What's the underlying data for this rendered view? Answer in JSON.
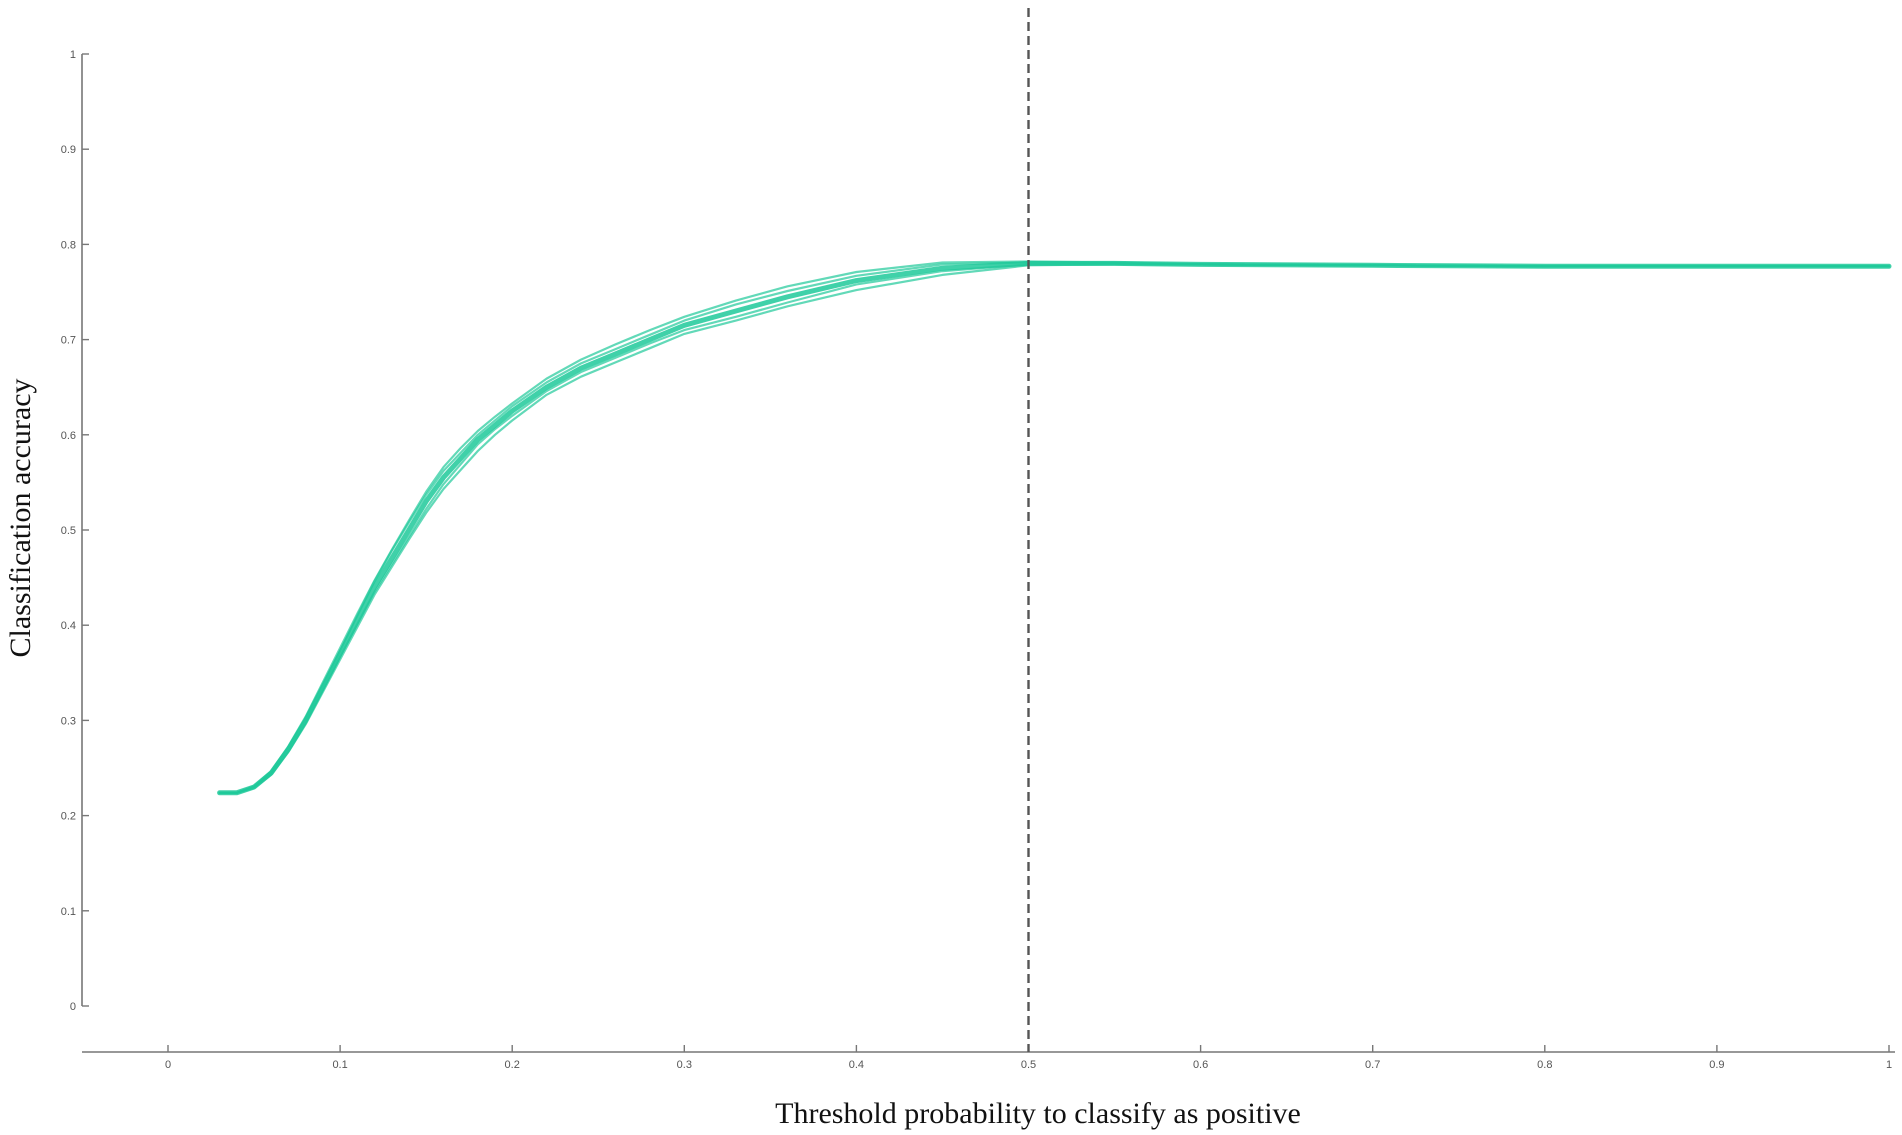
{
  "chart_data": {
    "type": "line",
    "title": "",
    "xlabel": "Threshold probability to classify as positive",
    "ylabel": "Classification accuracy",
    "xlim": [
      -0.05,
      1.0
    ],
    "ylim": [
      0,
      1
    ],
    "x_ticks": [
      0,
      0.1,
      0.2,
      0.3,
      0.4,
      0.5,
      0.6,
      0.7,
      0.8,
      0.9,
      1
    ],
    "x_tick_labels": [
      "0",
      "0.1",
      "0.2",
      "0.3",
      "0.4",
      "0.5",
      "0.6",
      "0.7",
      "0.8",
      "0.9",
      "1"
    ],
    "y_ticks": [
      0,
      0.1,
      0.2,
      0.3,
      0.4,
      0.5,
      0.6,
      0.7,
      0.8,
      0.9,
      1
    ],
    "y_tick_labels": [
      "0",
      "0.1",
      "0.2",
      "0.3",
      "0.4",
      "0.5",
      "0.6",
      "0.7",
      "0.8",
      "0.9",
      "1"
    ],
    "grid": false,
    "legend": "none",
    "reference_line": {
      "x": 0.5,
      "style": "dashed",
      "color": "#555555"
    },
    "line_color": "#1fc99a",
    "x": [
      0.03,
      0.04,
      0.05,
      0.06,
      0.07,
      0.08,
      0.09,
      0.1,
      0.11,
      0.12,
      0.13,
      0.14,
      0.15,
      0.16,
      0.17,
      0.18,
      0.19,
      0.2,
      0.22,
      0.24,
      0.26,
      0.28,
      0.3,
      0.33,
      0.36,
      0.4,
      0.45,
      0.5,
      0.55,
      0.6,
      0.7,
      0.8,
      0.9,
      1.0
    ],
    "series": [
      {
        "values": [
          0.224,
          0.224,
          0.23,
          0.245,
          0.27,
          0.3,
          0.335,
          0.37,
          0.405,
          0.44,
          0.47,
          0.5,
          0.53,
          0.555,
          0.575,
          0.595,
          0.61,
          0.625,
          0.65,
          0.67,
          0.685,
          0.7,
          0.715,
          0.73,
          0.745,
          0.762,
          0.775,
          0.78,
          0.78,
          0.779,
          0.778,
          0.777,
          0.777,
          0.777
        ]
      },
      {
        "values": [
          0.224,
          0.224,
          0.231,
          0.247,
          0.273,
          0.304,
          0.34,
          0.376,
          0.412,
          0.447,
          0.479,
          0.51,
          0.54,
          0.566,
          0.586,
          0.604,
          0.619,
          0.633,
          0.659,
          0.679,
          0.695,
          0.71,
          0.724,
          0.741,
          0.756,
          0.771,
          0.781,
          0.782,
          0.781,
          0.779,
          0.778,
          0.777,
          0.777,
          0.777
        ]
      },
      {
        "values": [
          0.224,
          0.224,
          0.229,
          0.243,
          0.267,
          0.296,
          0.33,
          0.364,
          0.398,
          0.432,
          0.461,
          0.49,
          0.518,
          0.543,
          0.563,
          0.583,
          0.6,
          0.615,
          0.642,
          0.661,
          0.676,
          0.691,
          0.706,
          0.72,
          0.735,
          0.752,
          0.768,
          0.778,
          0.779,
          0.779,
          0.778,
          0.777,
          0.777,
          0.777
        ]
      },
      {
        "values": [
          0.224,
          0.224,
          0.23,
          0.246,
          0.272,
          0.302,
          0.337,
          0.373,
          0.41,
          0.446,
          0.478,
          0.508,
          0.537,
          0.562,
          0.581,
          0.6,
          0.615,
          0.63,
          0.655,
          0.675,
          0.69,
          0.705,
          0.72,
          0.737,
          0.751,
          0.767,
          0.779,
          0.781,
          0.78,
          0.779,
          0.778,
          0.777,
          0.777,
          0.777
        ]
      },
      {
        "values": [
          0.224,
          0.224,
          0.23,
          0.244,
          0.268,
          0.298,
          0.332,
          0.367,
          0.401,
          0.435,
          0.464,
          0.493,
          0.522,
          0.548,
          0.569,
          0.59,
          0.606,
          0.62,
          0.646,
          0.666,
          0.681,
          0.696,
          0.71,
          0.724,
          0.739,
          0.758,
          0.772,
          0.779,
          0.78,
          0.779,
          0.778,
          0.777,
          0.777,
          0.777
        ]
      }
    ]
  }
}
